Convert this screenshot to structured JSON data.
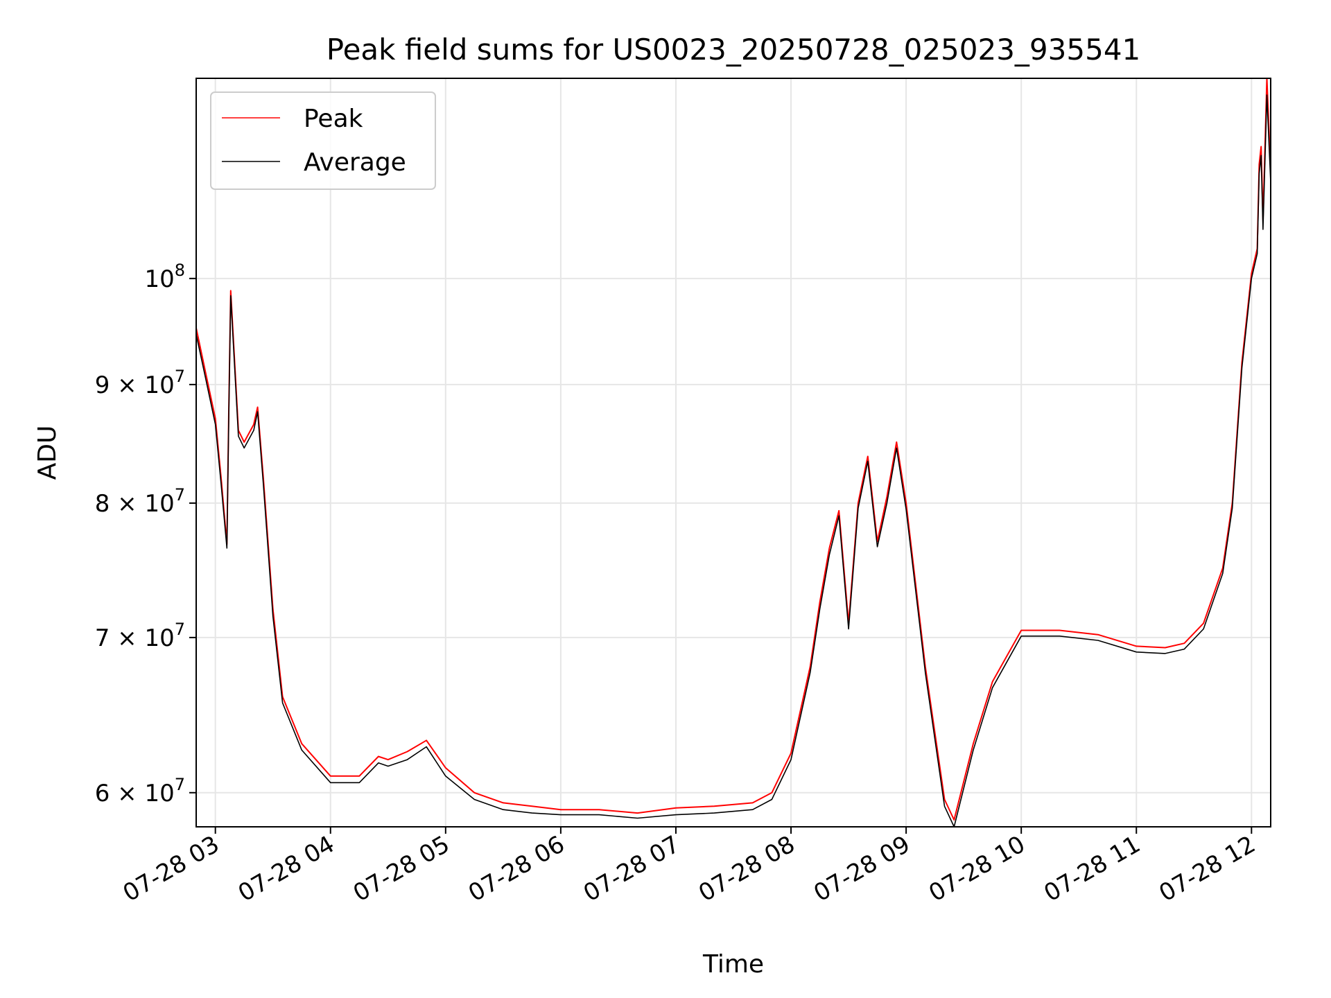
{
  "chart_data": {
    "type": "line",
    "title": "Peak field sums for US0023_20250728_025023_935541",
    "xlabel": "Time",
    "ylabel": "ADU",
    "xlim": [
      "2025-07-28 02:50",
      "2025-07-28 12:10"
    ],
    "ylim": [
      58000000,
      122000000
    ],
    "yscale": "log",
    "grid": true,
    "legend_position": "top-left",
    "x_ticks": [
      "07-28 03",
      "07-28 04",
      "07-28 05",
      "07-28 06",
      "07-28 07",
      "07-28 08",
      "07-28 09",
      "07-28 10",
      "07-28 11",
      "07-28 12"
    ],
    "x_tick_values": [
      "2025-07-28 03:00",
      "2025-07-28 04:00",
      "2025-07-28 05:00",
      "2025-07-28 06:00",
      "2025-07-28 07:00",
      "2025-07-28 08:00",
      "2025-07-28 09:00",
      "2025-07-28 10:00",
      "2025-07-28 11:00",
      "2025-07-28 12:00"
    ],
    "y_ticks": [
      {
        "value": 60000000,
        "mantissa": "6",
        "times": "×",
        "base": "10",
        "exp": "7"
      },
      {
        "value": 70000000,
        "mantissa": "7",
        "times": "×",
        "base": "10",
        "exp": "7"
      },
      {
        "value": 80000000,
        "mantissa": "8",
        "times": "×",
        "base": "10",
        "exp": "7"
      },
      {
        "value": 90000000,
        "mantissa": "9",
        "times": "×",
        "base": "10",
        "exp": "7"
      },
      {
        "value": 100000000,
        "mantissa": "",
        "times": "",
        "base": "10",
        "exp": "8"
      }
    ],
    "series": [
      {
        "name": "Peak",
        "color": "#ff0000",
        "x": [
          "2025-07-28 02:50",
          "2025-07-28 02:55",
          "2025-07-28 03:00",
          "2025-07-28 03:03",
          "2025-07-28 03:06",
          "2025-07-28 03:07",
          "2025-07-28 03:08",
          "2025-07-28 03:12",
          "2025-07-28 03:15",
          "2025-07-28 03:20",
          "2025-07-28 03:22",
          "2025-07-28 03:25",
          "2025-07-28 03:30",
          "2025-07-28 03:35",
          "2025-07-28 03:45",
          "2025-07-28 04:00",
          "2025-07-28 04:15",
          "2025-07-28 04:25",
          "2025-07-28 04:30",
          "2025-07-28 04:40",
          "2025-07-28 04:50",
          "2025-07-28 05:00",
          "2025-07-28 05:15",
          "2025-07-28 05:30",
          "2025-07-28 05:45",
          "2025-07-28 06:00",
          "2025-07-28 06:20",
          "2025-07-28 06:40",
          "2025-07-28 07:00",
          "2025-07-28 07:20",
          "2025-07-28 07:40",
          "2025-07-28 07:50",
          "2025-07-28 08:00",
          "2025-07-28 08:10",
          "2025-07-28 08:15",
          "2025-07-28 08:20",
          "2025-07-28 08:25",
          "2025-07-28 08:30",
          "2025-07-28 08:35",
          "2025-07-28 08:40",
          "2025-07-28 08:45",
          "2025-07-28 08:50",
          "2025-07-28 08:55",
          "2025-07-28 09:00",
          "2025-07-28 09:10",
          "2025-07-28 09:20",
          "2025-07-28 09:25",
          "2025-07-28 09:35",
          "2025-07-28 09:45",
          "2025-07-28 10:00",
          "2025-07-28 10:20",
          "2025-07-28 10:40",
          "2025-07-28 11:00",
          "2025-07-28 11:15",
          "2025-07-28 11:25",
          "2025-07-28 11:35",
          "2025-07-28 11:45",
          "2025-07-28 11:50",
          "2025-07-28 11:55",
          "2025-07-28 12:00",
          "2025-07-28 12:03",
          "2025-07-28 12:04",
          "2025-07-28 12:05",
          "2025-07-28 12:06",
          "2025-07-28 12:08",
          "2025-07-28 12:10"
        ],
        "values": [
          95200000,
          91000000,
          87000000,
          82000000,
          76800000,
          88000000,
          98800000,
          86000000,
          85000000,
          86500000,
          88000000,
          82000000,
          72000000,
          66000000,
          63000000,
          61000000,
          61000000,
          62200000,
          62000000,
          62500000,
          63200000,
          61500000,
          60000000,
          59400000,
          59200000,
          59000000,
          59000000,
          58800000,
          59100000,
          59200000,
          59400000,
          60000000,
          62400000,
          68000000,
          72500000,
          76500000,
          79400000,
          71000000,
          80000000,
          83800000,
          77000000,
          80500000,
          85000000,
          80000000,
          68000000,
          59600000,
          58400000,
          63000000,
          67000000,
          70500000,
          70500000,
          70200000,
          69400000,
          69300000,
          69600000,
          71000000,
          75000000,
          80000000,
          92000000,
          100500000,
          103000000,
          112000000,
          114000000,
          106000000,
          122000000,
          111000000
        ]
      },
      {
        "name": "Average",
        "color": "#000000",
        "x": [
          "2025-07-28 02:50",
          "2025-07-28 02:55",
          "2025-07-28 03:00",
          "2025-07-28 03:03",
          "2025-07-28 03:06",
          "2025-07-28 03:07",
          "2025-07-28 03:08",
          "2025-07-28 03:12",
          "2025-07-28 03:15",
          "2025-07-28 03:20",
          "2025-07-28 03:22",
          "2025-07-28 03:25",
          "2025-07-28 03:30",
          "2025-07-28 03:35",
          "2025-07-28 03:45",
          "2025-07-28 04:00",
          "2025-07-28 04:15",
          "2025-07-28 04:25",
          "2025-07-28 04:30",
          "2025-07-28 04:40",
          "2025-07-28 04:50",
          "2025-07-28 05:00",
          "2025-07-28 05:15",
          "2025-07-28 05:30",
          "2025-07-28 05:45",
          "2025-07-28 06:00",
          "2025-07-28 06:20",
          "2025-07-28 06:40",
          "2025-07-28 07:00",
          "2025-07-28 07:20",
          "2025-07-28 07:40",
          "2025-07-28 07:50",
          "2025-07-28 08:00",
          "2025-07-28 08:10",
          "2025-07-28 08:15",
          "2025-07-28 08:20",
          "2025-07-28 08:25",
          "2025-07-28 08:30",
          "2025-07-28 08:35",
          "2025-07-28 08:40",
          "2025-07-28 08:45",
          "2025-07-28 08:50",
          "2025-07-28 08:55",
          "2025-07-28 09:00",
          "2025-07-28 09:10",
          "2025-07-28 09:20",
          "2025-07-28 09:25",
          "2025-07-28 09:35",
          "2025-07-28 09:45",
          "2025-07-28 10:00",
          "2025-07-28 10:20",
          "2025-07-28 10:40",
          "2025-07-28 11:00",
          "2025-07-28 11:15",
          "2025-07-28 11:25",
          "2025-07-28 11:35",
          "2025-07-28 11:45",
          "2025-07-28 11:50",
          "2025-07-28 11:55",
          "2025-07-28 12:00",
          "2025-07-28 12:03",
          "2025-07-28 12:04",
          "2025-07-28 12:05",
          "2025-07-28 12:06",
          "2025-07-28 12:08",
          "2025-07-28 12:10"
        ],
        "values": [
          94600000,
          90500000,
          86500000,
          81500000,
          76500000,
          87500000,
          98300000,
          85500000,
          84500000,
          86000000,
          87600000,
          81500000,
          71500000,
          65600000,
          62600000,
          60600000,
          60600000,
          61800000,
          61600000,
          62000000,
          62800000,
          61000000,
          59600000,
          59000000,
          58800000,
          58700000,
          58700000,
          58500000,
          58700000,
          58800000,
          59000000,
          59600000,
          62000000,
          67600000,
          72000000,
          76000000,
          79000000,
          70600000,
          79600000,
          83400000,
          76600000,
          80000000,
          84500000,
          79500000,
          67600000,
          59200000,
          58000000,
          62600000,
          66600000,
          70100000,
          70100000,
          69800000,
          69000000,
          68900000,
          69200000,
          70600000,
          74600000,
          79600000,
          91500000,
          100000000,
          102500000,
          111000000,
          113000000,
          105000000,
          120000000,
          110000000
        ]
      }
    ]
  }
}
